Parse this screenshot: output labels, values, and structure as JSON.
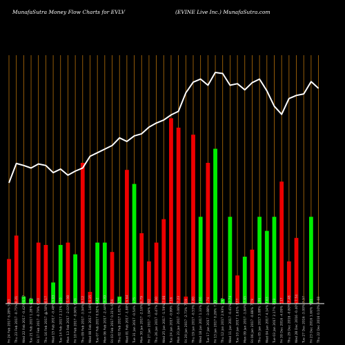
{
  "header": {
    "title_left": "MunafaSutra  Money Flow  Charts for EVLV",
    "title_right": "(EVINE Live   Inc.) MunafaSutra.com"
  },
  "colors": {
    "background": "#000000",
    "up": "#00ee00",
    "down": "#ee0000",
    "grid": "#b8720a",
    "line": "#ffffff",
    "axis": "#ffffff"
  },
  "chart_data": {
    "type": "bar",
    "title": "MunafaSutra  Money Flow  Charts for EVLV",
    "xlabel": "",
    "ylabel": "",
    "ylim": [
      0,
      100
    ],
    "grid": true,
    "axis_note": "0",
    "categories": [
      "Fri 24 Feb 2017 6.28% 5.83",
      "Thu 23 Feb 2017 -0.75% 6.21",
      "Wed 22 Feb 2017 -0.42% 6.17",
      "Tue 21 Feb 2017 1.28% 6.12",
      "Fri 17 Feb 2017 -0.79% 6.20",
      "Thu 16 Feb 2017 -1.58% 6.17",
      "Wed 15 Feb 2017 -0.48% 6.03",
      "Tue 14 Feb 2017 2.13% 6.10",
      "Mon 13 Feb 2017 -2.03% 5.98",
      "Fri 10 Feb 2017 -0.90% 6.06",
      "Thu 09 Feb 2017 -3.94% 6.12",
      "Wed 08 Feb 2017 -1.16% 6.35",
      "Tue 07 Feb 2017 0.92% 6.42",
      "Mon 06 Feb 2017 -2.44% 6.49",
      "Fri 03 Feb 2017 0.31% 6.56",
      "Thu 02 Feb 2017 1.01% 6.71",
      "Wed 01 Feb 2017 -1.88% 6.64",
      "Tue 31 Jan 2017 -0.54% 6.75",
      "Mon 30 Jan 2017 -2.16% 6.79",
      "Fri 27 Jan 2017 -1.04% 6.92",
      "Thu 26 Jan 2017 -0.47% 7.00",
      "Wed 25 Jan 2017 -1.59% 7.06",
      "Tue 24 Jan 2017 -0.99% 7.16",
      "Mon 23 Jan 2017 -5.06% 7.23",
      "Fri 20 Jan 2017 -2.73% 7.59",
      "Thu 19 Jan 2017 -0.53% 7.80",
      "Wed 18 Jan 2017 1.33% 7.86",
      "Tue 17 Jan 2017 -3.08% 7.74",
      "Fri 13 Jan 2017 0.26% 7.99",
      "Thu 12 Jan 2017 2.93% 7.97",
      "Wed 11 Jan 2017 -0.41% 7.74",
      "Tue 10 Jan 2017 1.61% 7.77",
      "Mon 09 Jan 2017 -1.84% 7.65",
      "Fri 06 Jan 2017 -0.88% 7.79",
      "Thu 05 Jan 2017 3.08% 7.86",
      "Wed 04 Jan 2017 4.14% 7.63",
      "Tue 03 Jan 2017 2.17% 7.33",
      "Fri 30 Dec 2016 -4.09% 7.17",
      "Thu 29 Dec 2016 -0.80% 7.48",
      "Wed 28 Dec 2016 -0.40% 7.54",
      "Tue 27 Dec 2016 -3.00% 7.57",
      "Fri 23 Dec 2016 1.66% 7.81",
      "Thu 22 Dec 2016 0.10% 7.68"
    ],
    "bar_colors": [
      "down",
      "down",
      "up",
      "up",
      "down",
      "down",
      "up",
      "up",
      "down",
      "up",
      "down",
      "down",
      "up",
      "up",
      "down",
      "up",
      "down",
      "up",
      "down",
      "down",
      "down",
      "down",
      "down",
      "down",
      "down",
      "down",
      "up",
      "down",
      "up",
      "up",
      "up",
      "down",
      "up",
      "down",
      "up",
      "up",
      "up",
      "down",
      "down",
      "down",
      "down",
      "up",
      "up"
    ],
    "series": [
      {
        "role": "money_flow_bars",
        "values": [
          19,
          29,
          3,
          2,
          26,
          25,
          9,
          25,
          26,
          21,
          60,
          5,
          26,
          26,
          22,
          3,
          57,
          51,
          30,
          18,
          26,
          36,
          79,
          75,
          3,
          72,
          37,
          60,
          66,
          2,
          37,
          12,
          20,
          23,
          37,
          31,
          37,
          52,
          18,
          28,
          0,
          37,
          0
        ]
      },
      {
        "role": "price_line",
        "values": [
          5.83,
          6.21,
          6.17,
          6.12,
          6.2,
          6.17,
          6.03,
          6.1,
          5.98,
          6.06,
          6.12,
          6.35,
          6.42,
          6.49,
          6.56,
          6.71,
          6.64,
          6.75,
          6.79,
          6.92,
          7.0,
          7.06,
          7.16,
          7.23,
          7.59,
          7.8,
          7.86,
          7.74,
          7.99,
          7.97,
          7.74,
          7.77,
          7.65,
          7.79,
          7.86,
          7.63,
          7.33,
          7.17,
          7.48,
          7.54,
          7.57,
          7.81,
          7.68
        ]
      }
    ]
  }
}
